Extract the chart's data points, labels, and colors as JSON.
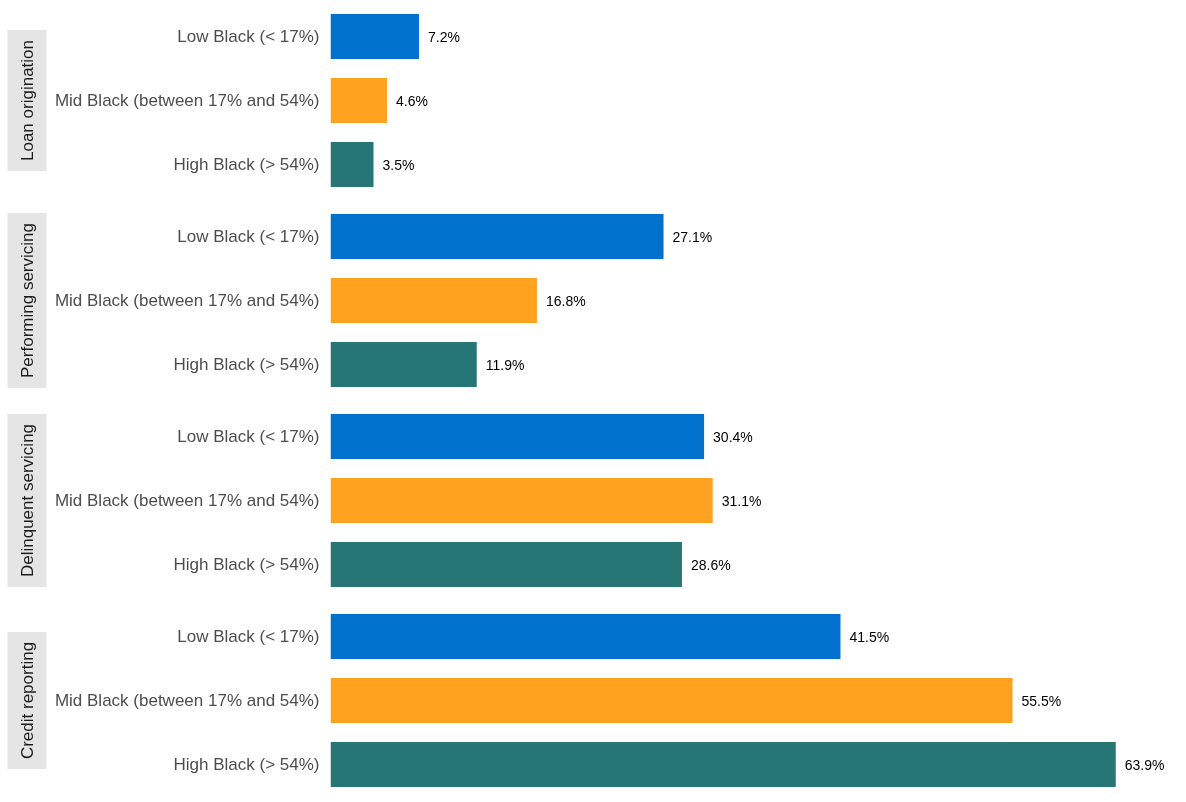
{
  "chart_data": [
    {
      "type": "bar",
      "orientation": "horizontal",
      "title": "Loan origination",
      "categories": [
        "Low Black (< 17%)",
        "Mid Black (between 17% and 54%)",
        "High Black (> 54%)"
      ],
      "values": [
        7.2,
        4.6,
        3.5
      ],
      "value_labels": [
        "7.2%",
        "4.6%",
        "3.5%"
      ],
      "colors": [
        "#0072ce",
        "#ffa21f",
        "#257675"
      ],
      "tick_labels": "y"
    },
    {
      "type": "bar",
      "orientation": "horizontal",
      "title": "Performing servicing",
      "categories": [
        "Low Black (< 17%)",
        "Mid Black (between 17% and 54%)",
        "High Black (> 54%)"
      ],
      "values": [
        27.1,
        16.8,
        11.9
      ],
      "value_labels": [
        "27.1%",
        "16.8%",
        "11.9%"
      ],
      "colors": [
        "#0072ce",
        "#ffa21f",
        "#257675"
      ],
      "tick_labels": "y"
    },
    {
      "type": "bar",
      "orientation": "horizontal",
      "title": "Delinquent servicing",
      "categories": [
        "Low Black (< 17%)",
        "Mid Black (between 17% and 54%)",
        "High Black (> 54%)"
      ],
      "values": [
        30.4,
        31.1,
        28.6
      ],
      "value_labels": [
        "30.4%",
        "31.1%",
        "28.6%"
      ],
      "colors": [
        "#0072ce",
        "#ffa21f",
        "#257675"
      ],
      "tick_labels": "y"
    },
    {
      "type": "bar",
      "orientation": "horizontal",
      "title": "Credit reporting",
      "categories": [
        "Low Black (< 17%)",
        "Mid Black (between 17% and 54%)",
        "High Black (> 54%)"
      ],
      "values": [
        41.5,
        55.5,
        63.9
      ],
      "value_labels": [
        "41.5%",
        "55.5%",
        "63.9%"
      ],
      "colors": [
        "#0072ce",
        "#ffa21f",
        "#257675"
      ],
      "tick_labels": "y"
    }
  ]
}
